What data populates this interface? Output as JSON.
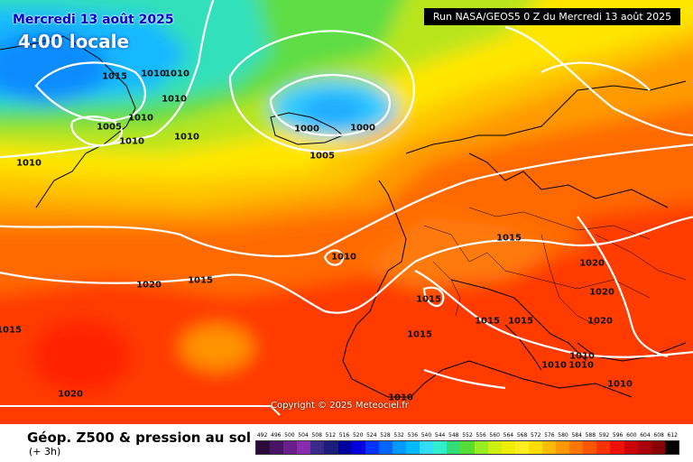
{
  "header": {
    "date": "Mercredi 13 août 2025",
    "time": "4:00 locale",
    "run": "Run NASA/GEOS5 0 Z du Mercredi 13 août 2025"
  },
  "copyright": "Copyright © 2025 Meteociel.fr",
  "footer": {
    "title": "Géop. Z500 & pression au sol",
    "subtitle": "(+ 3h)"
  },
  "legend": {
    "ticks": [
      "492",
      "496",
      "500",
      "504",
      "508",
      "512",
      "516",
      "520",
      "524",
      "528",
      "532",
      "536",
      "540",
      "544",
      "548",
      "552",
      "556",
      "560",
      "564",
      "568",
      "572",
      "576",
      "580",
      "584",
      "588",
      "592",
      "596",
      "600",
      "604",
      "608",
      "612"
    ],
    "colors": [
      "#2b0a3a",
      "#4a1466",
      "#6a1e8a",
      "#8a2bb0",
      "#3a2a8a",
      "#1c1c7a",
      "#0000a0",
      "#0000dd",
      "#0033ff",
      "#0066ff",
      "#0099ff",
      "#00bbff",
      "#33ddff",
      "#33eecc",
      "#33dd77",
      "#55dd33",
      "#99ee22",
      "#ccee11",
      "#eeee00",
      "#ffee22",
      "#ffdd00",
      "#ffbb00",
      "#ff9900",
      "#ff7700",
      "#ff5500",
      "#ff3300",
      "#ee1100",
      "#cc0000",
      "#aa0000",
      "#880000",
      "#000000"
    ]
  },
  "isobars": [
    {
      "label": "1015"
    },
    {
      "label": "1010"
    },
    {
      "label": "1010"
    },
    {
      "label": "1010"
    },
    {
      "label": "1010"
    },
    {
      "label": "1005"
    },
    {
      "label": "1010"
    },
    {
      "label": "1010"
    },
    {
      "label": "1010"
    },
    {
      "label": "1000"
    },
    {
      "label": "1000"
    },
    {
      "label": "1005"
    },
    {
      "label": "1010"
    },
    {
      "label": "1015"
    },
    {
      "label": "1020"
    },
    {
      "label": "1015"
    },
    {
      "label": "1015"
    },
    {
      "label": "1015"
    },
    {
      "label": "1020"
    },
    {
      "label": "1020"
    },
    {
      "label": "1015"
    },
    {
      "label": "1015"
    },
    {
      "label": "1020"
    },
    {
      "label": "1010"
    },
    {
      "label": "1010"
    },
    {
      "label": "1010"
    },
    {
      "label": "1010"
    },
    {
      "label": "1020"
    },
    {
      "label": "1010"
    },
    {
      "label": "1015"
    }
  ]
}
